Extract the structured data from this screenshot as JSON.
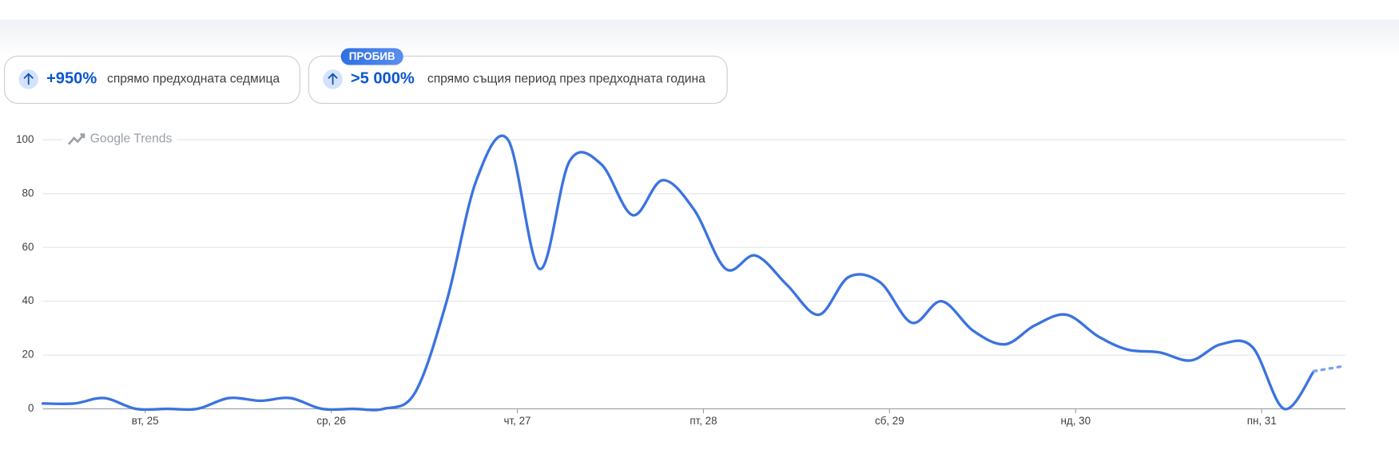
{
  "badges": [
    {
      "change": "+950%",
      "text": "спрямо предходната седмица"
    },
    {
      "tag": "ПРОБИВ",
      "change": ">5 000%",
      "text": "спрямо същия период през предходната година"
    }
  ],
  "chart_data": {
    "type": "line",
    "watermark": "Google Trends",
    "x": [
      24.45,
      24.62,
      24.78,
      24.95,
      25.12,
      25.28,
      25.45,
      25.62,
      25.78,
      25.95,
      26.12,
      26.28,
      26.45,
      26.62,
      26.78,
      26.95,
      27.12,
      27.28,
      27.45,
      27.62,
      27.78,
      27.95,
      28.12,
      28.28,
      28.45,
      28.62,
      28.78,
      28.95,
      29.12,
      29.28,
      29.45,
      29.62,
      29.78,
      29.95,
      30.12,
      30.28,
      30.45,
      30.62,
      30.78,
      30.95,
      31.12,
      31.28,
      31.45
    ],
    "series": [
      {
        "color": "#3b73e0",
        "line_style": "solid",
        "values": [
          2,
          2,
          4,
          0,
          0,
          0,
          4,
          3,
          4,
          0,
          0,
          0,
          6,
          40,
          85,
          100,
          52,
          92,
          91,
          72,
          85,
          74,
          52,
          57,
          46,
          35,
          49,
          47,
          32,
          40,
          29,
          24,
          31,
          35,
          27,
          22,
          21,
          18,
          24,
          23,
          0,
          14,
          null
        ]
      },
      {
        "color": "#7ba3ee",
        "line_style": "dotted",
        "values": [
          null,
          null,
          null,
          null,
          null,
          null,
          null,
          null,
          null,
          null,
          null,
          null,
          null,
          null,
          null,
          null,
          null,
          null,
          null,
          null,
          null,
          null,
          null,
          null,
          null,
          null,
          null,
          null,
          null,
          null,
          null,
          null,
          null,
          null,
          null,
          null,
          null,
          null,
          null,
          null,
          null,
          14,
          16
        ]
      }
    ],
    "xlim": [
      24.45,
      31.45
    ],
    "xticks": [
      {
        "value": 25,
        "label": "вт, 25"
      },
      {
        "value": 26,
        "label": "ср, 26"
      },
      {
        "value": 27,
        "label": "чт, 27"
      },
      {
        "value": 28,
        "label": "пт, 28"
      },
      {
        "value": 29,
        "label": "сб, 29"
      },
      {
        "value": 30,
        "label": "нд, 30"
      },
      {
        "value": 31,
        "label": "пн, 31"
      }
    ],
    "ylim": [
      0,
      100
    ],
    "yticks": [
      0,
      20,
      40,
      60,
      80,
      100
    ],
    "grid": true
  }
}
